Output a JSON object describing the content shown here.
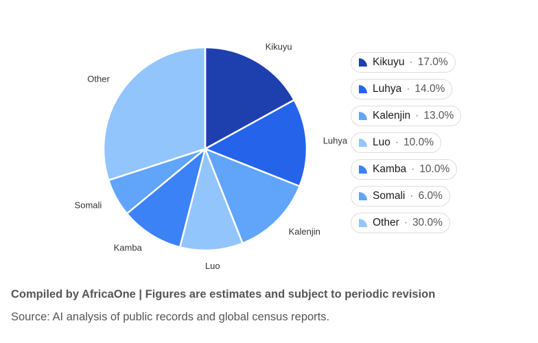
{
  "chart_data": {
    "type": "pie",
    "categories": [
      "Kikuyu",
      "Luhya",
      "Kalenjin",
      "Luo",
      "Kamba",
      "Somali",
      "Other"
    ],
    "values": [
      17.0,
      14.0,
      13.0,
      10.0,
      10.0,
      6.0,
      30.0
    ],
    "colors": [
      "#1e40af",
      "#2563eb",
      "#60a5fa",
      "#93c5fd",
      "#3b82f6",
      "#60a5fa",
      "#93c5fd"
    ],
    "legend_labels": [
      "17.0%",
      "14.0%",
      "13.0%",
      "10.0%",
      "10.0%",
      "6.0%",
      "30.0%"
    ],
    "legend_position": "right",
    "start_angle": "top, clockwise"
  },
  "legend_separator": "·",
  "footer": {
    "note": "Compiled by AfricaOne | Figures are estimates and subject to periodic revision",
    "source": "Source: AI analysis of public records and global census reports."
  }
}
